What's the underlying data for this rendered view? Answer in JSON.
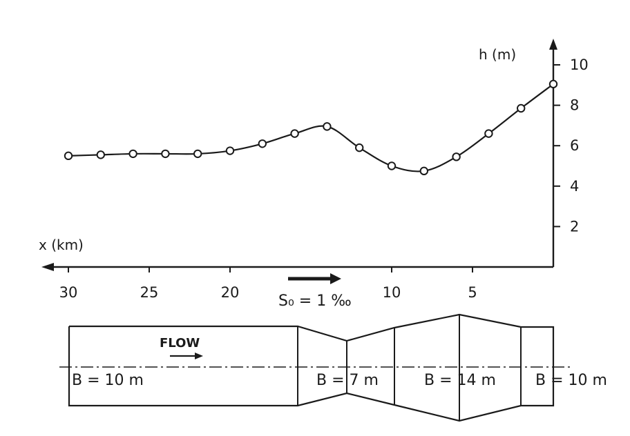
{
  "chart_data": {
    "type": "line",
    "xlabel": "x (km)",
    "ylabel": "h (m)",
    "x_axis_reversed": true,
    "xlim": [
      0,
      30
    ],
    "ylim": [
      0,
      11
    ],
    "x_ticks": [
      {
        "value": 30,
        "label": "30"
      },
      {
        "value": 25,
        "label": "25"
      },
      {
        "value": 20,
        "label": "20"
      },
      {
        "value": 10,
        "label": "10"
      },
      {
        "value": 5,
        "label": "5"
      }
    ],
    "y_ticks": [
      {
        "value": 2,
        "label": "2"
      },
      {
        "value": 4,
        "label": "4"
      },
      {
        "value": 6,
        "label": "6"
      },
      {
        "value": 8,
        "label": "8"
      },
      {
        "value": 10,
        "label": "10"
      }
    ],
    "series": [
      {
        "x": [
          30,
          28,
          26,
          24,
          22,
          20,
          18,
          16,
          14,
          12,
          10,
          8,
          6,
          4,
          2,
          0
        ],
        "y": [
          5.5,
          5.55,
          5.6,
          5.6,
          5.6,
          5.75,
          6.1,
          6.6,
          6.95,
          5.9,
          5.0,
          4.75,
          5.45,
          6.6,
          7.85,
          9.05
        ],
        "marker": "open-circle"
      }
    ],
    "annotation": "S₀ = 1 ‰",
    "grid": false,
    "legend": "none"
  },
  "channel": {
    "flow_label": "FLOW",
    "sections": [
      {
        "label": "B = 10 m",
        "width_m": 10,
        "from_km": 30,
        "to_km": 15.5
      },
      {
        "label": "B = 7 m",
        "width_m": 7,
        "from_km": 13.5,
        "to_km": 10
      },
      {
        "label": "B = 14 m",
        "width_m": 14,
        "from_km": 6,
        "to_km": 6
      },
      {
        "label": "B = 10 m",
        "width_m": 10,
        "from_km": 2,
        "to_km": 0
      }
    ]
  },
  "colors": {
    "ink": "#1a1a1a",
    "background": "#ffffff"
  }
}
